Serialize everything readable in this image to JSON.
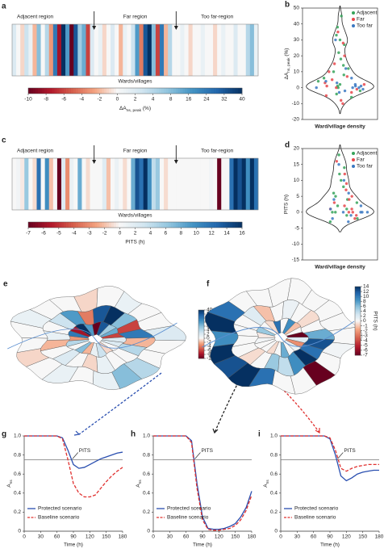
{
  "chart_data": [
    {
      "type": "heatstrip",
      "panel": "a",
      "regions": [
        "Adjacent region",
        "Far region",
        "Too far-region"
      ],
      "xlabel": "Wards/villages",
      "values": [
        2,
        0,
        -1,
        3,
        1,
        -2,
        8,
        0,
        4,
        -3,
        24,
        -8,
        40,
        16,
        -10,
        32,
        6,
        12,
        -6,
        2,
        0,
        1,
        -1,
        0,
        2,
        0,
        -2,
        1,
        0,
        3,
        16,
        -4,
        32,
        40,
        8,
        -6,
        24,
        -2,
        4,
        0,
        0,
        1,
        0,
        -1,
        0,
        0,
        1,
        0,
        0,
        -1,
        0,
        1,
        0,
        0,
        2,
        0,
        0,
        4,
        8,
        1
      ],
      "colorbar_ticks": [
        -10,
        -8,
        -6,
        -4,
        -2,
        0,
        2,
        4,
        8,
        16,
        24,
        32,
        40
      ],
      "colorbar_label": {
        "main": "ΔA",
        "sub": "ns, peak",
        "tail": " (%)"
      },
      "neg_colors": [
        "#f7f7f7",
        "#f4a582",
        "#d6604d",
        "#b2182b",
        "#67001f"
      ],
      "pos_colors": [
        "#f7f7f7",
        "#d1e5f0",
        "#92c5de",
        "#4393c3",
        "#2166ac",
        "#053061"
      ]
    },
    {
      "type": "violin",
      "panel": "b",
      "ylim": [
        -20,
        50
      ],
      "yticks": [
        -20,
        -10,
        0,
        10,
        20,
        30,
        40,
        50
      ],
      "ylabel": {
        "main": "ΔA",
        "sub": "ns, peak",
        "tail": " (%)"
      },
      "xlabel": "Ward/village density",
      "legend": "upper right",
      "series": [
        {
          "name": "Adjacent",
          "color": "#35a35a",
          "values": [
            45,
            38,
            33,
            30,
            27,
            22,
            18,
            14,
            12,
            10,
            8,
            6,
            4,
            2,
            1,
            0,
            -2,
            -4,
            -6
          ]
        },
        {
          "name": "Far",
          "color": "#e8464b",
          "values": [
            35,
            28,
            20,
            15,
            10,
            7,
            5,
            3,
            2,
            1,
            0,
            -1,
            -3,
            -5,
            -8,
            -10
          ]
        },
        {
          "name": "Too far",
          "color": "#3a78c2",
          "values": [
            30,
            12,
            6,
            4,
            3,
            2,
            1,
            1,
            0,
            0,
            0,
            -1,
            -2,
            -3
          ]
        }
      ]
    },
    {
      "type": "heatstrip",
      "panel": "c",
      "regions": [
        "Adjacent region",
        "Far region",
        "Too far-region"
      ],
      "xlabel": "Wards/villages",
      "values": [
        0,
        0.5,
        -0.5,
        6,
        0,
        -1,
        12,
        0,
        10,
        -2,
        0,
        -7,
        2,
        -3,
        1,
        0,
        8,
        0,
        -1,
        0,
        0,
        0,
        2,
        -2,
        0,
        1,
        0,
        -1,
        0,
        8,
        14,
        12,
        16,
        10,
        4,
        6,
        0,
        -1,
        0,
        0,
        0,
        0,
        0,
        0,
        0,
        0,
        0,
        0,
        0.5,
        0,
        -7,
        0,
        0,
        12,
        16,
        14,
        16,
        10,
        16,
        12
      ],
      "colorbar_ticks": [
        -7,
        -6,
        -5,
        -4,
        -3,
        -2,
        0,
        2,
        4,
        6,
        8,
        10,
        12,
        14,
        16
      ],
      "colorbar_label": "PITS (h)",
      "neg_colors": [
        "#f7f7f7",
        "#f4a582",
        "#d6604d",
        "#b2182b",
        "#67001f"
      ],
      "pos_colors": [
        "#f7f7f7",
        "#d1e5f0",
        "#92c5de",
        "#4393c3",
        "#2166ac",
        "#053061"
      ]
    },
    {
      "type": "violin",
      "panel": "d",
      "ylim": [
        -15,
        20
      ],
      "yticks": [
        -15,
        -10,
        -5,
        0,
        5,
        10,
        15,
        20
      ],
      "ylabel": "PITS (h)",
      "xlabel": "Ward/village density",
      "legend": "upper right",
      "series": [
        {
          "name": "Adjacent",
          "color": "#35a35a",
          "values": [
            18,
            14,
            12,
            10,
            8,
            6,
            5,
            4,
            3,
            2,
            1,
            0,
            0,
            -1,
            -2,
            -3
          ]
        },
        {
          "name": "Far",
          "color": "#e8464b",
          "values": [
            16,
            12,
            9,
            7,
            5,
            4,
            3,
            2,
            1,
            1,
            0,
            0,
            -1,
            -2
          ]
        },
        {
          "name": "Too far",
          "color": "#3a78c2",
          "values": [
            15,
            10,
            6,
            4,
            2,
            1,
            0,
            0,
            0,
            0,
            -1,
            -2,
            -3
          ]
        }
      ]
    },
    {
      "type": "map",
      "panel": "e",
      "colorbar_ticks": [
        -10,
        -8,
        -6,
        -4,
        -2,
        0,
        2,
        4,
        8,
        16,
        24,
        32,
        40
      ],
      "colorbar_label": {
        "main": "ΔA",
        "sub": "ns, peak",
        "tail": " (%)"
      }
    },
    {
      "type": "map",
      "panel": "f",
      "colorbar_ticks": [
        -7,
        -6,
        -5,
        -4,
        -3,
        -2,
        -1,
        0,
        2,
        4,
        6,
        8,
        10,
        12,
        14
      ],
      "colorbar_label": "PITS (h)"
    },
    {
      "type": "line",
      "panel": "g",
      "x": [
        0,
        10,
        20,
        30,
        40,
        50,
        60,
        70,
        80,
        90,
        100,
        110,
        120,
        130,
        140,
        150,
        160,
        170,
        180
      ],
      "xlim": [
        0,
        180
      ],
      "xticks": [
        0,
        30,
        60,
        90,
        120,
        150,
        180
      ],
      "ylim": [
        0,
        1
      ],
      "yticks": [
        0,
        0.2,
        0.4,
        0.6,
        0.8,
        {
          "value": 1,
          "label": "1.0"
        }
      ],
      "xlabel": "Time (h)",
      "ylabel": {
        "main": "A",
        "sub": "ns"
      },
      "threshold": 0.75,
      "annotation": "PITS",
      "legend": "lower left",
      "series": [
        {
          "name": "Protected scenario",
          "color": "#2a4fb0",
          "style": "solid",
          "values": [
            1,
            1,
            1,
            1,
            1,
            1,
            1,
            0.98,
            0.85,
            0.7,
            0.66,
            0.67,
            0.7,
            0.73,
            0.76,
            0.78,
            0.8,
            0.82,
            0.83
          ]
        },
        {
          "name": "Baseline scenario",
          "color": "#e0302f",
          "style": "dashed",
          "values": [
            1,
            1,
            1,
            1,
            1,
            1,
            1,
            0.97,
            0.75,
            0.5,
            0.4,
            0.36,
            0.36,
            0.38,
            0.45,
            0.52,
            0.58,
            0.63,
            0.67
          ]
        }
      ]
    },
    {
      "type": "line",
      "panel": "h",
      "x": [
        0,
        10,
        20,
        30,
        40,
        50,
        60,
        70,
        80,
        90,
        100,
        110,
        120,
        130,
        140,
        150,
        160,
        170,
        180
      ],
      "xlim": [
        0,
        180
      ],
      "xticks": [
        0,
        30,
        60,
        90,
        120,
        150,
        180
      ],
      "ylim": [
        0,
        1
      ],
      "yticks": [
        0,
        0.2,
        0.4,
        0.6,
        0.8,
        {
          "value": 1,
          "label": "1.0"
        }
      ],
      "xlabel": "Time (h)",
      "ylabel": {
        "main": "A",
        "sub": "ns"
      },
      "threshold": 0.75,
      "annotation": "PITS",
      "legend": "lower left",
      "series": [
        {
          "name": "Protected scenario",
          "color": "#2a4fb0",
          "style": "solid",
          "values": [
            1,
            1,
            1,
            1,
            1,
            1,
            1,
            0.95,
            0.5,
            0.15,
            0.03,
            0.02,
            0.02,
            0.03,
            0.05,
            0.08,
            0.15,
            0.25,
            0.42
          ]
        },
        {
          "name": "Baseline scenario",
          "color": "#e0302f",
          "style": "dashed",
          "values": [
            1,
            1,
            1,
            1,
            1,
            1,
            1,
            0.93,
            0.45,
            0.12,
            0.02,
            0.01,
            0.01,
            0.02,
            0.03,
            0.06,
            0.12,
            0.22,
            0.38
          ]
        }
      ]
    },
    {
      "type": "line",
      "panel": "i",
      "x": [
        0,
        10,
        20,
        30,
        40,
        50,
        60,
        70,
        80,
        90,
        100,
        110,
        120,
        130,
        140,
        150,
        160,
        170,
        180
      ],
      "xlim": [
        0,
        180
      ],
      "xticks": [
        0,
        30,
        60,
        90,
        120,
        150,
        180
      ],
      "ylim": [
        0,
        1
      ],
      "yticks": [
        0,
        0.2,
        0.4,
        0.6,
        0.8,
        {
          "value": 1,
          "label": "1.0"
        }
      ],
      "xlabel": "Time (h)",
      "ylabel": {
        "main": "A",
        "sub": "ns"
      },
      "threshold": 0.75,
      "annotation": "PITS",
      "legend": "lower left",
      "series": [
        {
          "name": "Protected scenario",
          "color": "#2a4fb0",
          "style": "solid",
          "values": [
            1,
            1,
            1,
            1,
            1,
            1,
            1,
            1,
            1,
            0.97,
            0.8,
            0.58,
            0.53,
            0.56,
            0.6,
            0.62,
            0.63,
            0.64,
            0.64
          ]
        },
        {
          "name": "Baseline scenario",
          "color": "#e0302f",
          "style": "dashed",
          "values": [
            1,
            1,
            1,
            1,
            1,
            1,
            1,
            1,
            1,
            0.98,
            0.85,
            0.66,
            0.63,
            0.66,
            0.68,
            0.69,
            0.7,
            0.7,
            0.7
          ]
        }
      ]
    }
  ]
}
